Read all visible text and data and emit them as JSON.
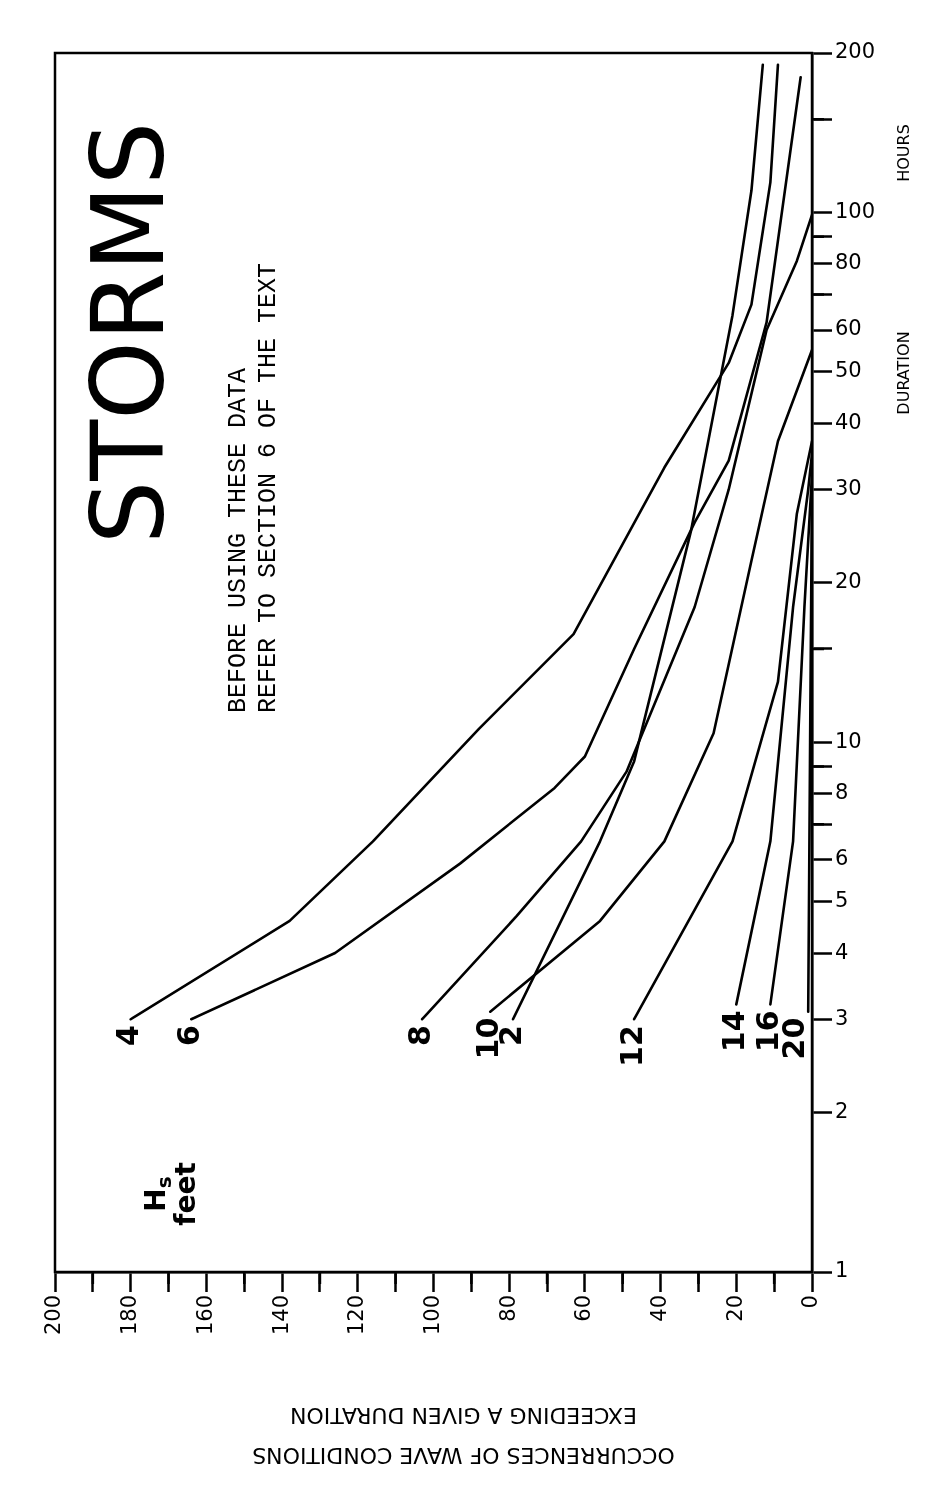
{
  "chart_data": {
    "type": "line",
    "title": "STORMS",
    "xlabel": "OCCURRENCES OF WAVE CONDITIONS EXCEEDING A GIVEN DURATION",
    "ylabel": "DURATION",
    "legend_title": "H$_{s}$ feet",
    "annotations": [
      "BEFORE USING THESE DATA",
      "REFER TO SECTION 6 OF THE TEXT",
      "HOURS"
    ],
    "xlim": [
      200,
      0
    ],
    "xticks": [
      200,
      {
        "value": 190,
        "label": null
      },
      180,
      {
        "value": 170,
        "label": null
      },
      160,
      {
        "value": 150,
        "label": null
      },
      140,
      {
        "value": 130,
        "label": null
      },
      120,
      {
        "value": 110,
        "label": null
      },
      100,
      {
        "value": 90,
        "label": null
      },
      80,
      {
        "value": 70,
        "label": null
      },
      60,
      {
        "value": 50,
        "label": null
      },
      40,
      {
        "value": 30,
        "label": null
      },
      20,
      {
        "value": 10,
        "label": null
      },
      0
    ],
    "ylim": [
      1,
      200
    ],
    "yticks": [
      1,
      2,
      3,
      4,
      5,
      6,
      {
        "value": 7,
        "label": null
      },
      8,
      {
        "value": 9,
        "label": null
      },
      10,
      {
        "value": 15,
        "label": null
      },
      20,
      30,
      40,
      50,
      60,
      {
        "value": 70,
        "label": null
      },
      80,
      {
        "value": 90,
        "label": null
      },
      100,
      {
        "value": 150,
        "label": null
      },
      200
    ],
    "log": "y",
    "grid": false,
    "marker": "none",
    "series": [
      {
        "name": "2",
        "color": "#000000",
        "x": [
          79,
          56,
          47,
          32,
          21,
          16,
          13
        ],
        "values": [
          3,
          6.5,
          9.2,
          25,
          64,
          110,
          190
        ]
      },
      {
        "name": "4",
        "color": "#000000",
        "x": [
          180,
          138,
          116,
          88,
          63,
          39,
          22,
          16,
          11,
          9
        ],
        "values": [
          3,
          4.6,
          6.5,
          10.6,
          16,
          33,
          52,
          67,
          114,
          190
        ]
      },
      {
        "name": "6",
        "color": "#000000",
        "x": [
          164,
          126,
          93,
          68,
          60,
          47,
          31,
          22,
          12,
          3
        ],
        "values": [
          3,
          4,
          5.9,
          8.2,
          9.4,
          15,
          26,
          34,
          62,
          180
        ]
      },
      {
        "name": "8",
        "color": "#000000",
        "x": [
          103,
          78,
          61,
          49,
          31,
          22,
          12,
          4,
          0
        ],
        "values": [
          3,
          4.7,
          6.5,
          8.8,
          18,
          30,
          60,
          81,
          99
        ]
      },
      {
        "name": "10",
        "color": "#000000",
        "x": [
          85,
          56,
          39,
          26,
          16,
          9,
          0
        ],
        "values": [
          3.1,
          4.6,
          6.5,
          10.4,
          22,
          37,
          55
        ]
      },
      {
        "name": "12",
        "color": "#000000",
        "x": [
          47,
          21,
          9,
          4,
          0
        ],
        "values": [
          3,
          6.5,
          13,
          27,
          37
        ]
      },
      {
        "name": "14",
        "color": "#000000",
        "x": [
          20,
          11,
          5,
          1,
          0
        ],
        "values": [
          3.2,
          6.5,
          18,
          30,
          35
        ]
      },
      {
        "name": "16",
        "color": "#000000",
        "x": [
          11,
          5,
          2,
          0
        ],
        "values": [
          3.2,
          6.5,
          18,
          32
        ]
      },
      {
        "name": "20",
        "color": "#000000",
        "x": [
          1,
          0.5,
          0
        ],
        "values": [
          3.1,
          10,
          30
        ]
      }
    ]
  }
}
